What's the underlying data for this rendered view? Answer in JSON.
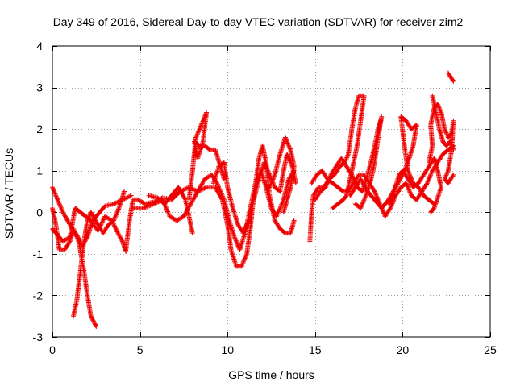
{
  "chart_data": {
    "type": "scatter",
    "title": "Day 349 of 2016, Sidereal Day-to-day VTEC variation (SDTVAR) for receiver zim2",
    "xlabel": "GPS time / hours",
    "ylabel": "SDTVAR / TECUs",
    "xlim": [
      0,
      25
    ],
    "ylim": [
      -3,
      4
    ],
    "xticks": [
      0,
      5,
      10,
      15,
      20,
      25
    ],
    "yticks": [
      -3,
      -2,
      -1,
      0,
      1,
      2,
      3,
      4
    ],
    "grid": true,
    "marker": "+",
    "marker_color": "#ee0000",
    "tracks": [
      {
        "points": [
          [
            0.0,
            0.6
          ],
          [
            0.3,
            0.3
          ],
          [
            0.6,
            0.0
          ],
          [
            1.0,
            -0.3
          ],
          [
            1.4,
            -0.55
          ],
          [
            1.7,
            -0.8
          ],
          [
            2.0,
            -0.6
          ],
          [
            2.3,
            -0.2
          ],
          [
            2.7,
            0.0
          ],
          [
            3.0,
            0.15
          ],
          [
            3.5,
            0.2
          ],
          [
            4.0,
            0.3
          ],
          [
            4.5,
            0.4
          ]
        ]
      },
      {
        "points": [
          [
            0.0,
            0.1
          ],
          [
            0.2,
            -0.3
          ],
          [
            0.4,
            -0.9
          ],
          [
            0.7,
            -0.9
          ],
          [
            1.0,
            -0.7
          ],
          [
            1.2,
            -0.4
          ],
          [
            1.5,
            -0.7
          ],
          [
            1.8,
            -1.4
          ],
          [
            2.0,
            -2.0
          ],
          [
            2.2,
            -2.5
          ],
          [
            2.5,
            -2.75
          ]
        ]
      },
      {
        "points": [
          [
            1.2,
            -2.5
          ],
          [
            1.4,
            -2.1
          ],
          [
            1.6,
            -1.4
          ],
          [
            1.8,
            -0.7
          ],
          [
            2.0,
            -0.2
          ],
          [
            2.2,
            0.0
          ],
          [
            2.6,
            -0.3
          ],
          [
            2.9,
            -0.5
          ],
          [
            3.2,
            -0.3
          ],
          [
            3.5,
            -0.2
          ],
          [
            3.8,
            0.1
          ],
          [
            4.1,
            0.5
          ]
        ]
      },
      {
        "points": [
          [
            0.0,
            -0.4
          ],
          [
            0.3,
            -0.55
          ],
          [
            0.6,
            -0.7
          ],
          [
            1.0,
            -0.6
          ],
          [
            1.3,
            0.1
          ],
          [
            1.6,
            0.0
          ],
          [
            1.9,
            -0.1
          ],
          [
            2.2,
            -0.2
          ],
          [
            2.6,
            -0.45
          ],
          [
            3.0,
            -0.1
          ],
          [
            3.4,
            -0.2
          ],
          [
            3.8,
            -0.55
          ],
          [
            4.0,
            -0.7
          ],
          [
            4.2,
            -0.95
          ]
        ]
      },
      {
        "points": [
          [
            4.2,
            -0.9
          ],
          [
            4.4,
            -0.2
          ],
          [
            4.6,
            0.3
          ],
          [
            4.9,
            0.3
          ],
          [
            5.3,
            0.2
          ],
          [
            5.8,
            0.25
          ],
          [
            6.3,
            0.35
          ],
          [
            6.8,
            0.3
          ],
          [
            7.3,
            0.5
          ],
          [
            7.8,
            0.6
          ],
          [
            8.3,
            0.5
          ],
          [
            8.8,
            0.6
          ],
          [
            9.3,
            0.6
          ],
          [
            9.7,
            0.3
          ],
          [
            10.0,
            -0.3
          ],
          [
            10.2,
            -0.9
          ],
          [
            10.5,
            -1.3
          ],
          [
            10.8,
            -1.3
          ],
          [
            11.1,
            -1.0
          ],
          [
            11.3,
            -0.4
          ],
          [
            11.5,
            0.4
          ],
          [
            11.8,
            1.3
          ],
          [
            12.0,
            1.6
          ],
          [
            12.2,
            1.2
          ],
          [
            12.4,
            0.4
          ],
          [
            12.7,
            -0.2
          ],
          [
            13.0,
            -0.4
          ],
          [
            13.3,
            -0.5
          ],
          [
            13.6,
            -0.5
          ],
          [
            13.8,
            -0.2
          ]
        ]
      },
      {
        "points": [
          [
            4.6,
            0.1
          ],
          [
            5.2,
            0.1
          ],
          [
            5.8,
            0.2
          ],
          [
            6.3,
            0.3
          ],
          [
            6.7,
            -0.1
          ],
          [
            7.1,
            -0.2
          ],
          [
            7.5,
            -0.1
          ],
          [
            7.9,
            0.2
          ],
          [
            8.3,
            0.5
          ],
          [
            8.7,
            0.8
          ],
          [
            9.1,
            0.9
          ],
          [
            9.4,
            0.7
          ],
          [
            9.8,
            0.3
          ],
          [
            10.1,
            -0.2
          ],
          [
            10.4,
            -0.6
          ],
          [
            10.7,
            -0.9
          ],
          [
            11.0,
            -0.5
          ],
          [
            11.3,
            0.1
          ],
          [
            11.6,
            0.7
          ],
          [
            11.9,
            1.0
          ],
          [
            12.2,
            0.6
          ],
          [
            12.5,
            0.1
          ],
          [
            12.8,
            -0.1
          ],
          [
            13.2,
            0.3
          ],
          [
            13.5,
            0.8
          ],
          [
            13.8,
            1.0
          ]
        ]
      },
      {
        "points": [
          [
            5.5,
            0.4
          ],
          [
            6.0,
            0.35
          ],
          [
            6.4,
            0.2
          ],
          [
            6.8,
            0.4
          ],
          [
            7.2,
            0.6
          ],
          [
            7.6,
            0.3
          ],
          [
            7.9,
            -0.3
          ],
          [
            8.0,
            -0.5
          ]
        ]
      },
      {
        "points": [
          [
            7.8,
            0.3
          ],
          [
            8.0,
            1.0
          ],
          [
            8.2,
            1.8
          ],
          [
            8.5,
            2.1
          ],
          [
            8.8,
            2.4
          ],
          [
            8.6,
            1.7
          ],
          [
            8.3,
            1.3
          ],
          [
            8.1,
            1.7
          ],
          [
            8.4,
            1.6
          ],
          [
            8.7,
            1.6
          ],
          [
            9.0,
            1.5
          ],
          [
            9.3,
            1.5
          ],
          [
            9.6,
            1.1
          ],
          [
            9.8,
            0.8
          ]
        ]
      },
      {
        "points": [
          [
            9.2,
            0.7
          ],
          [
            9.5,
            1.1
          ],
          [
            9.8,
            1.2
          ],
          [
            10.0,
            0.6
          ],
          [
            10.3,
            0.1
          ],
          [
            10.6,
            -0.3
          ],
          [
            10.9,
            -0.5
          ],
          [
            11.2,
            -0.2
          ],
          [
            11.5,
            0.3
          ],
          [
            11.8,
            0.8
          ],
          [
            12.1,
            1.2
          ],
          [
            12.4,
            0.9
          ],
          [
            12.7,
            0.6
          ],
          [
            13.0,
            0.5
          ],
          [
            13.2,
            1.0
          ],
          [
            13.4,
            1.4
          ],
          [
            13.7,
            1.1
          ],
          [
            13.9,
            0.7
          ]
        ]
      },
      {
        "points": [
          [
            12.4,
            0.6
          ],
          [
            12.7,
            0.9
          ],
          [
            13.0,
            1.4
          ],
          [
            13.3,
            1.8
          ],
          [
            13.6,
            1.5
          ],
          [
            13.8,
            1.1
          ],
          [
            13.6,
            0.6
          ],
          [
            13.4,
            0.3
          ],
          [
            13.2,
            0.0
          ]
        ]
      },
      {
        "points": [
          [
            14.7,
            -0.7
          ],
          [
            14.8,
            0.0
          ],
          [
            14.9,
            0.4
          ],
          [
            15.2,
            0.6
          ],
          [
            15.5,
            0.6
          ],
          [
            15.8,
            0.8
          ],
          [
            16.1,
            0.9
          ],
          [
            16.4,
            1.1
          ],
          [
            16.7,
            1.2
          ],
          [
            16.9,
            1.4
          ],
          [
            17.1,
            2.0
          ],
          [
            17.3,
            2.5
          ],
          [
            17.5,
            2.8
          ],
          [
            17.8,
            2.8
          ],
          [
            17.6,
            2.2
          ],
          [
            17.4,
            1.6
          ],
          [
            17.2,
            1.2
          ],
          [
            17.0,
            0.8
          ],
          [
            16.8,
            0.4
          ],
          [
            16.6,
            0.3
          ],
          [
            16.3,
            0.2
          ],
          [
            16.0,
            0.1
          ]
        ]
      },
      {
        "points": [
          [
            14.8,
            0.7
          ],
          [
            15.1,
            0.9
          ],
          [
            15.4,
            1.0
          ],
          [
            15.7,
            0.8
          ],
          [
            16.0,
            0.7
          ],
          [
            16.3,
            0.6
          ],
          [
            16.6,
            0.5
          ],
          [
            16.9,
            0.5
          ],
          [
            17.2,
            0.7
          ],
          [
            17.5,
            0.9
          ],
          [
            17.8,
            0.9
          ],
          [
            18.1,
            0.7
          ],
          [
            18.4,
            0.5
          ],
          [
            18.7,
            0.2
          ],
          [
            19.0,
            -0.1
          ],
          [
            19.3,
            0.1
          ],
          [
            19.6,
            0.4
          ],
          [
            19.9,
            0.6
          ],
          [
            20.2,
            0.7
          ],
          [
            20.5,
            0.4
          ],
          [
            20.8,
            0.3
          ],
          [
            21.1,
            0.5
          ],
          [
            21.4,
            0.7
          ],
          [
            21.7,
            1.0
          ],
          [
            22.0,
            1.2
          ],
          [
            22.3,
            1.4
          ],
          [
            22.6,
            1.5
          ],
          [
            22.9,
            1.6
          ]
        ]
      },
      {
        "points": [
          [
            15.0,
            0.3
          ],
          [
            15.3,
            0.5
          ],
          [
            15.6,
            0.6
          ],
          [
            15.9,
            0.9
          ],
          [
            16.2,
            1.1
          ],
          [
            16.5,
            1.3
          ],
          [
            16.8,
            1.1
          ],
          [
            17.1,
            0.9
          ],
          [
            17.4,
            0.6
          ],
          [
            17.7,
            0.5
          ],
          [
            18.0,
            0.9
          ],
          [
            18.3,
            1.4
          ],
          [
            18.6,
            2.0
          ],
          [
            18.8,
            2.3
          ],
          [
            18.6,
            1.8
          ],
          [
            18.4,
            1.2
          ],
          [
            18.2,
            0.8
          ],
          [
            17.9,
            0.4
          ],
          [
            17.6,
            0.1
          ],
          [
            17.3,
            0.2
          ]
        ]
      },
      {
        "points": [
          [
            17.0,
            0.4
          ],
          [
            17.3,
            0.6
          ],
          [
            17.6,
            0.8
          ],
          [
            18.0,
            0.5
          ],
          [
            18.4,
            0.3
          ],
          [
            18.8,
            0.1
          ],
          [
            19.2,
            0.3
          ],
          [
            19.6,
            0.6
          ],
          [
            20.0,
            0.9
          ],
          [
            20.3,
            1.2
          ],
          [
            20.6,
            1.6
          ],
          [
            20.8,
            2.1
          ],
          [
            20.5,
            2.0
          ],
          [
            20.2,
            2.2
          ],
          [
            19.9,
            2.3
          ],
          [
            20.1,
            1.6
          ],
          [
            20.3,
            1.0
          ],
          [
            20.6,
            0.7
          ],
          [
            20.9,
            0.6
          ],
          [
            21.2,
            0.4
          ],
          [
            21.5,
            0.3
          ],
          [
            21.8,
            0.2
          ]
        ]
      },
      {
        "points": [
          [
            19.2,
            0.2
          ],
          [
            19.5,
            0.5
          ],
          [
            19.8,
            0.9
          ],
          [
            20.0,
            1.0
          ],
          [
            20.3,
            0.8
          ],
          [
            20.6,
            0.6
          ],
          [
            20.9,
            0.7
          ],
          [
            21.2,
            0.9
          ],
          [
            21.5,
            1.1
          ],
          [
            21.8,
            1.3
          ],
          [
            22.0,
            1.0
          ],
          [
            22.2,
            0.6
          ],
          [
            21.8,
            0.1
          ],
          [
            21.6,
            0.0
          ]
        ]
      },
      {
        "points": [
          [
            21.5,
            1.2
          ],
          [
            21.7,
            1.6
          ],
          [
            21.6,
            2.1
          ],
          [
            21.8,
            2.5
          ],
          [
            22.0,
            2.6
          ],
          [
            22.2,
            2.4
          ],
          [
            22.4,
            2.0
          ],
          [
            22.6,
            1.8
          ],
          [
            22.8,
            1.9
          ],
          [
            22.9,
            2.2
          ],
          [
            22.8,
            1.5
          ],
          [
            22.6,
            1.0
          ],
          [
            22.4,
            0.8
          ],
          [
            22.6,
            0.7
          ],
          [
            22.9,
            0.9
          ]
        ]
      },
      {
        "points": [
          [
            21.7,
            2.8
          ],
          [
            21.9,
            2.4
          ],
          [
            22.1,
            2.0
          ],
          [
            22.3,
            1.7
          ],
          [
            22.5,
            1.6
          ],
          [
            22.7,
            1.7
          ],
          [
            22.9,
            1.5
          ]
        ]
      },
      {
        "points": [
          [
            22.6,
            3.35
          ],
          [
            22.75,
            3.25
          ],
          [
            22.9,
            3.15
          ]
        ]
      }
    ]
  }
}
